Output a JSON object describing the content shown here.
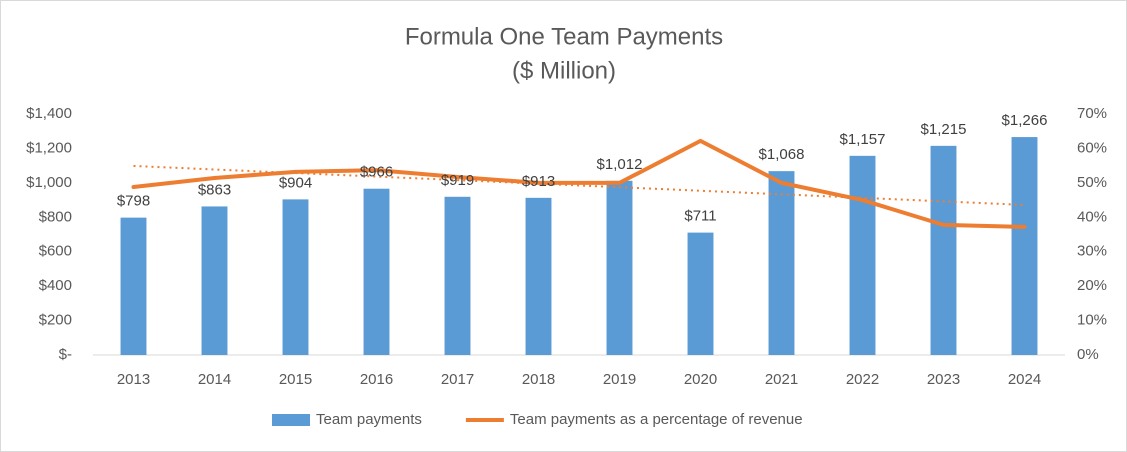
{
  "chart_data": {
    "type": "bar-line",
    "title": "Formula One Team Payments",
    "subtitle": "($ Million)",
    "categories": [
      "2013",
      "2014",
      "2015",
      "2016",
      "2017",
      "2018",
      "2019",
      "2020",
      "2021",
      "2022",
      "2023",
      "2024"
    ],
    "series": [
      {
        "name": "Team payments",
        "type": "bar",
        "color": "#5b9bd5",
        "values": [
          798,
          863,
          904,
          966,
          919,
          913,
          1012,
          711,
          1068,
          1157,
          1215,
          1266
        ],
        "value_labels": [
          "$798",
          "$863",
          "$904",
          "$966",
          "$919",
          "$913",
          "$1,012",
          "$711",
          "$1,068",
          "$1,157",
          "$1,215",
          "$1,266"
        ]
      },
      {
        "name": "Team payments as a percentage of revenue",
        "type": "line",
        "axis": "y2",
        "color": "#ed7d31",
        "trendline": true,
        "values": [
          48.8,
          51.4,
          53.2,
          53.7,
          51.7,
          50,
          50,
          62.2,
          50,
          45,
          37.8,
          37.2
        ]
      }
    ],
    "ylim": [
      0,
      1400
    ],
    "yticks": [
      {
        "value": 0,
        "label": "$-"
      },
      {
        "value": 200,
        "label": "$200"
      },
      {
        "value": 400,
        "label": "$400"
      },
      {
        "value": 600,
        "label": "$600"
      },
      {
        "value": 800,
        "label": "$800"
      },
      {
        "value": 1000,
        "label": "$1,000"
      },
      {
        "value": 1200,
        "label": "$1,200"
      },
      {
        "value": 1400,
        "label": "$1,400"
      }
    ],
    "y2lim": [
      0,
      70
    ],
    "y2ticks": [
      {
        "value": 0,
        "label": "0%"
      },
      {
        "value": 10,
        "label": "10%"
      },
      {
        "value": 20,
        "label": "20%"
      },
      {
        "value": 30,
        "label": "30%"
      },
      {
        "value": 40,
        "label": "40%"
      },
      {
        "value": 50,
        "label": "50%"
      },
      {
        "value": 60,
        "label": "60%"
      },
      {
        "value": 70,
        "label": "70%"
      }
    ],
    "grid": false,
    "legend": "bottom"
  }
}
